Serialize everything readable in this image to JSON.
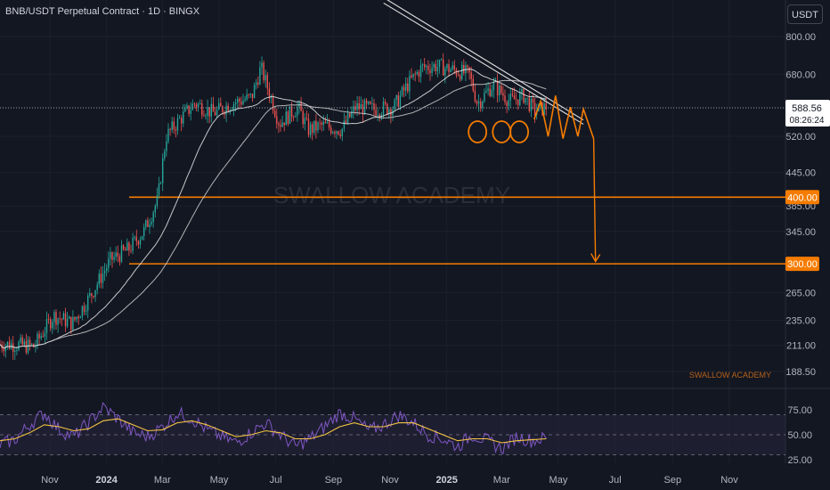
{
  "header": {
    "title": "BNB/USDT Perpetual Contract · 1D · BINGX"
  },
  "currency_button": "USDT",
  "watermark": "SWALLOW ACADEMY",
  "watermark_small": "SWALLOW ACADEMY",
  "last_price": {
    "value": "588.56",
    "countdown": "08:26:24"
  },
  "colors": {
    "background": "#131722",
    "up": "#26a69a",
    "down": "#ef5350",
    "ma_fast": "#e6e6e6",
    "ma_slow": "#cfcfcf",
    "annotation": "#f57c00",
    "trendline": "#e0e0e0",
    "rsi_line": "#7e57c2",
    "rsi_ma": "#f5c542",
    "rsi_band": "#2a2540"
  },
  "chart_data": [
    {
      "type": "candlestick",
      "title": "BNB/USDT Perpetual Contract · 1D · BINGX",
      "y_axis": {
        "scale": "log",
        "ylim": [
          180,
          850
        ],
        "tick_labels": [
          "800.00",
          "680.00",
          "588.56",
          "520.00",
          "445.00",
          "385.00",
          "345.00",
          "265.00",
          "235.00",
          "211.00",
          "188.50"
        ]
      },
      "x_axis": {
        "tick_labels": [
          "Nov",
          "2024",
          "Mar",
          "May",
          "Jul",
          "Sep",
          "Nov",
          "2025",
          "Mar",
          "May",
          "Jul",
          "Sep",
          "Nov"
        ]
      },
      "price_path": {
        "dates": [
          "2023-09-20",
          "2023-10-15",
          "2023-11-05",
          "2023-11-25",
          "2023-12-15",
          "2024-01-05",
          "2024-01-25",
          "2024-02-10",
          "2024-02-25",
          "2024-03-05",
          "2024-03-20",
          "2024-04-05",
          "2024-04-25",
          "2024-05-15",
          "2024-06-05",
          "2024-06-15",
          "2024-07-05",
          "2024-07-25",
          "2024-08-05",
          "2024-08-20",
          "2024-09-10",
          "2024-09-25",
          "2024-10-15",
          "2024-11-05",
          "2024-11-20",
          "2024-12-05",
          "2024-12-20",
          "2025-01-05",
          "2025-01-25",
          "2025-02-03",
          "2025-02-20",
          "2025-03-10",
          "2025-03-25",
          "2025-04-05",
          "2025-04-18"
        ],
        "close": [
          212,
          210,
          240,
          232,
          262,
          305,
          320,
          345,
          395,
          520,
          560,
          600,
          575,
          600,
          615,
          700,
          550,
          590,
          535,
          545,
          535,
          590,
          585,
          590,
          650,
          700,
          705,
          695,
          680,
          600,
          650,
          605,
          620,
          580,
          590
        ]
      },
      "ma_fast_label": "",
      "ma_slow_label": "",
      "horizontal_levels": [
        {
          "price": 400,
          "label": "400.00"
        },
        {
          "price": 300,
          "label": "300.00"
        }
      ],
      "last_price": 588.56,
      "annotations": {
        "descending_trendlines": [
          {
            "from": [
              "2024-10-25",
              850
            ],
            "to": [
              "2025-05-28",
              558
            ]
          },
          {
            "from": [
              "2024-10-25",
              830
            ],
            "to": [
              "2025-05-28",
              548
            ]
          }
        ],
        "circled_lows": [
          "2025-02-03",
          "2025-03-01",
          "2025-03-20"
        ],
        "projected_zigzag": [
          [
            "2025-04-05",
            560
          ],
          [
            "2025-04-12",
            605
          ],
          [
            "2025-04-20",
            520
          ],
          [
            "2025-04-28",
            620
          ],
          [
            "2025-05-06",
            515
          ],
          [
            "2025-05-14",
            590
          ],
          [
            "2025-05-22",
            520
          ],
          [
            "2025-05-28",
            585
          ],
          [
            "2025-06-08",
            515
          ]
        ],
        "projection_arrow": {
          "from": [
            "2025-06-08",
            515
          ],
          "to": [
            "2025-06-10",
            303
          ]
        }
      }
    },
    {
      "type": "line",
      "name": "RSI",
      "ylim": [
        20,
        85
      ],
      "tick_labels": [
        "75.00",
        "50.00",
        "25.00"
      ],
      "bands": [
        70,
        50,
        30
      ],
      "series": [
        {
          "name": "",
          "values": [
            40,
            45,
            60,
            72,
            55,
            48,
            62,
            78,
            66,
            52,
            48,
            58,
            72,
            66,
            55,
            48,
            42,
            52,
            62,
            50,
            38,
            46,
            58,
            72,
            66,
            54,
            60,
            70,
            62,
            50,
            46,
            38,
            50,
            44,
            36,
            48,
            44,
            47
          ]
        },
        {
          "name": "",
          "values": [
            44,
            46,
            52,
            60,
            58,
            54,
            56,
            64,
            66,
            60,
            54,
            55,
            62,
            64,
            60,
            54,
            48,
            50,
            54,
            52,
            46,
            46,
            50,
            58,
            62,
            58,
            58,
            62,
            62,
            56,
            50,
            44,
            46,
            46,
            42,
            44,
            45,
            46
          ]
        }
      ]
    }
  ]
}
